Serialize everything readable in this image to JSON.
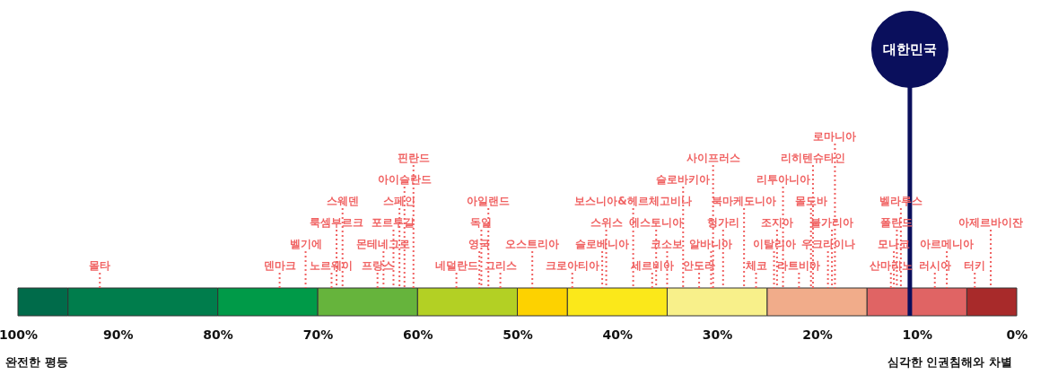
{
  "chart_data": {
    "type": "bar",
    "orientation": "horizontal",
    "stacked": true,
    "categories": [
      null
    ],
    "series": [
      {
        "color": "#a82a2a",
        "values": [
          5
        ]
      },
      {
        "color": "#e06464",
        "values": [
          10
        ]
      },
      {
        "color": "#f1ac8a",
        "values": [
          10
        ]
      },
      {
        "color": "#f8f08a",
        "values": [
          10
        ]
      },
      {
        "color": "#fbe81a",
        "values": [
          10
        ]
      },
      {
        "color": "#fdd200",
        "values": [
          5
        ]
      },
      {
        "color": "#b3d024",
        "values": [
          10
        ]
      },
      {
        "color": "#66b43c",
        "values": [
          10
        ]
      },
      {
        "color": "#009a48",
        "values": [
          10
        ]
      },
      {
        "color": "#007d4c",
        "values": [
          15
        ]
      },
      {
        "color": "#006b4a",
        "values": [
          5
        ]
      }
    ],
    "xlim": [
      100,
      0
    ],
    "xticks": [
      {
        "value": 100,
        "label": "100%"
      },
      {
        "value": 90,
        "label": "90%"
      },
      {
        "value": 80,
        "label": "80%"
      },
      {
        "value": 70,
        "label": "70%"
      },
      {
        "value": 60,
        "label": "60%"
      },
      {
        "value": 50,
        "label": "50%"
      },
      {
        "value": 40,
        "label": "40%"
      },
      {
        "value": 30,
        "label": "30%"
      },
      {
        "value": 20,
        "label": "20%"
      },
      {
        "value": 10,
        "label": "10%"
      },
      {
        "value": 0,
        "label": "0%"
      }
    ],
    "ref_lines": [
      {
        "axis": "x",
        "value": 10.7,
        "label": "대한민국",
        "color": "#0a0f5c",
        "line_style": "solid"
      },
      {
        "axis": "x",
        "value": 91.8,
        "label": "몰타",
        "color": "#f06262",
        "line_style": "dotted"
      },
      {
        "axis": "x",
        "value": 73.8,
        "label": "덴마크",
        "color": "#f06262",
        "line_style": "dotted"
      },
      {
        "axis": "x",
        "value": 71.2,
        "label": "벨기에",
        "color": "#f06262",
        "line_style": "dotted"
      },
      {
        "axis": "x",
        "value": 68.6,
        "label": "노르웨이",
        "color": "#f06262",
        "line_style": "dotted"
      },
      {
        "axis": "x",
        "value": 68.1,
        "label": "룩셈부르크",
        "color": "#f06262",
        "line_style": "dotted"
      },
      {
        "axis": "x",
        "value": 67.5,
        "label": "스웨덴",
        "color": "#f06262",
        "line_style": "dotted"
      },
      {
        "axis": "x",
        "value": 64.0,
        "label": "프랑스",
        "color": "#f06262",
        "line_style": "dotted"
      },
      {
        "axis": "x",
        "value": 63.4,
        "label": "몬테네그로",
        "color": "#f06262",
        "line_style": "dotted"
      },
      {
        "axis": "x",
        "value": 62.4,
        "label": "포르투갈",
        "color": "#f06262",
        "line_style": "dotted"
      },
      {
        "axis": "x",
        "value": 61.8,
        "label": "스페인",
        "color": "#f06262",
        "line_style": "dotted"
      },
      {
        "axis": "x",
        "value": 61.3,
        "label": "아이슬란드",
        "color": "#f06262",
        "line_style": "dotted"
      },
      {
        "axis": "x",
        "value": 60.4,
        "label": "핀란드",
        "color": "#f06262",
        "line_style": "dotted"
      },
      {
        "axis": "x",
        "value": 56.1,
        "label": "네덜란드",
        "color": "#f06262",
        "line_style": "dotted"
      },
      {
        "axis": "x",
        "value": 53.8,
        "label": "영국",
        "color": "#f06262",
        "line_style": "dotted"
      },
      {
        "axis": "x",
        "value": 53.6,
        "label": "독일",
        "color": "#f06262",
        "line_style": "dotted"
      },
      {
        "axis": "x",
        "value": 52.9,
        "label": "아일랜드",
        "color": "#f06262",
        "line_style": "dotted"
      },
      {
        "axis": "x",
        "value": 51.7,
        "label": "그리스",
        "color": "#f06262",
        "line_style": "dotted"
      },
      {
        "axis": "x",
        "value": 48.5,
        "label": "오스트리아",
        "color": "#f06262",
        "line_style": "dotted"
      },
      {
        "axis": "x",
        "value": 44.5,
        "label": "크로아티아",
        "color": "#f06262",
        "line_style": "dotted"
      },
      {
        "axis": "x",
        "value": 41.5,
        "label": "슬로베니아",
        "color": "#f06262",
        "line_style": "dotted"
      },
      {
        "axis": "x",
        "value": 41.1,
        "label": "스위스",
        "color": "#f06262",
        "line_style": "dotted"
      },
      {
        "axis": "x",
        "value": 38.4,
        "label": "보스니아&헤르체고비나",
        "color": "#f06262",
        "line_style": "dotted"
      },
      {
        "axis": "x",
        "value": 36.5,
        "label": "세르비아",
        "color": "#f06262",
        "line_style": "dotted"
      },
      {
        "axis": "x",
        "value": 36.1,
        "label": "에스토니아",
        "color": "#f06262",
        "line_style": "dotted"
      },
      {
        "axis": "x",
        "value": 35.0,
        "label": "코소보",
        "color": "#f06262",
        "line_style": "dotted"
      },
      {
        "axis": "x",
        "value": 33.4,
        "label": "슬로바키아",
        "color": "#f06262",
        "line_style": "dotted"
      },
      {
        "axis": "x",
        "value": 31.8,
        "label": "안도라",
        "color": "#f06262",
        "line_style": "dotted"
      },
      {
        "axis": "x",
        "value": 30.6,
        "label": "알바니아",
        "color": "#f06262",
        "line_style": "dotted"
      },
      {
        "axis": "x",
        "value": 30.4,
        "label": "사이프러스",
        "color": "#f06262",
        "line_style": "dotted"
      },
      {
        "axis": "x",
        "value": 29.4,
        "label": "헝가리",
        "color": "#f06262",
        "line_style": "dotted"
      },
      {
        "axis": "x",
        "value": 27.3,
        "label": "북마케도니아",
        "color": "#f06262",
        "line_style": "dotted"
      },
      {
        "axis": "x",
        "value": 26.1,
        "label": "체코",
        "color": "#f06262",
        "line_style": "dotted"
      },
      {
        "axis": "x",
        "value": 24.3,
        "label": "이탈리아",
        "color": "#f06262",
        "line_style": "dotted"
      },
      {
        "axis": "x",
        "value": 24.0,
        "label": "조지아",
        "color": "#f06262",
        "line_style": "dotted"
      },
      {
        "axis": "x",
        "value": 23.4,
        "label": "리투아니아",
        "color": "#f06262",
        "line_style": "dotted"
      },
      {
        "axis": "x",
        "value": 21.8,
        "label": "라트비아",
        "color": "#f06262",
        "line_style": "dotted"
      },
      {
        "axis": "x",
        "value": 20.6,
        "label": "몰도바",
        "color": "#f06262",
        "line_style": "dotted"
      },
      {
        "axis": "x",
        "value": 20.4,
        "label": "리히텐슈타인",
        "color": "#f06262",
        "line_style": "dotted"
      },
      {
        "axis": "x",
        "value": 18.9,
        "label": "우크라이나",
        "color": "#f06262",
        "line_style": "dotted"
      },
      {
        "axis": "x",
        "value": 18.5,
        "label": "불가리아",
        "color": "#f06262",
        "line_style": "dotted"
      },
      {
        "axis": "x",
        "value": 18.2,
        "label": "로마니아",
        "color": "#f06262",
        "line_style": "dotted"
      },
      {
        "axis": "x",
        "value": 12.6,
        "label": "산마리노",
        "color": "#f06262",
        "line_style": "dotted"
      },
      {
        "axis": "x",
        "value": 12.3,
        "label": "모나코",
        "color": "#f06262",
        "line_style": "dotted"
      },
      {
        "axis": "x",
        "value": 12.0,
        "label": "폴란드",
        "color": "#f06262",
        "line_style": "dotted"
      },
      {
        "axis": "x",
        "value": 11.6,
        "label": "벨라루스",
        "color": "#f06262",
        "line_style": "dotted"
      },
      {
        "axis": "x",
        "value": 8.2,
        "label": "러시아",
        "color": "#f06262",
        "line_style": "dotted"
      },
      {
        "axis": "x",
        "value": 7.0,
        "label": "아르메니아",
        "color": "#f06262",
        "line_style": "dotted"
      },
      {
        "axis": "x",
        "value": 4.2,
        "label": "터키",
        "color": "#f06262",
        "line_style": "dotted"
      },
      {
        "axis": "x",
        "value": 2.6,
        "label": "아제르바이잔",
        "color": "#f06262",
        "line_style": "dotted"
      }
    ],
    "annotations": [
      "완전한 평등",
      "심각한 인권침해와 차별"
    ]
  }
}
